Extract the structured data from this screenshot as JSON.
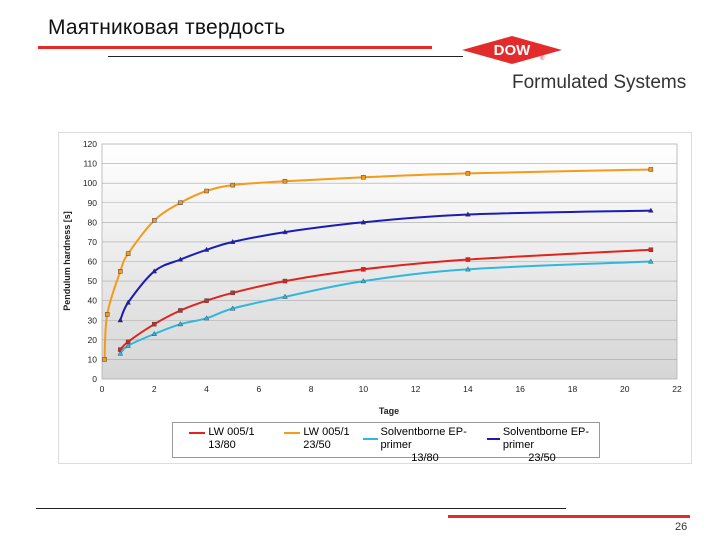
{
  "slide": {
    "title": "Маятниковая твердость",
    "logo_text": "DOW",
    "logo_mark": "®",
    "logo_subtitle": "Formulated Systems",
    "page_number": "26",
    "brand_red": "#e32b2b"
  },
  "chart_data": {
    "type": "line",
    "xlabel": "Tage",
    "ylabel": "Pendulum hardness [s]",
    "xlim": [
      0,
      22
    ],
    "ylim": [
      0,
      120
    ],
    "xticks": [
      0,
      2,
      4,
      6,
      8,
      10,
      12,
      14,
      16,
      18,
      20,
      22
    ],
    "yticks": [
      0,
      10,
      20,
      30,
      40,
      50,
      60,
      70,
      80,
      90,
      100,
      110,
      120
    ],
    "grid": true,
    "legend_position": "bottom",
    "series": [
      {
        "name": "LW 005/1",
        "sub": "13/80",
        "color": "#e0241c",
        "marker": "square",
        "x": [
          0.7,
          1,
          2,
          3,
          4,
          5,
          7,
          10,
          14,
          21
        ],
        "y": [
          15,
          19,
          28,
          35,
          40,
          44,
          50,
          56,
          61,
          66
        ]
      },
      {
        "name": "LW 005/1",
        "sub": "23/50",
        "color": "#f59a1b",
        "marker": "square",
        "x": [
          0.1,
          0.2,
          0.7,
          1,
          2,
          3,
          4,
          5,
          7,
          10,
          14,
          21
        ],
        "y": [
          10,
          33,
          55,
          64,
          81,
          90,
          96,
          99,
          101,
          103,
          105,
          107
        ]
      },
      {
        "name": "Solventborne EP-primer",
        "sub": "13/80",
        "color": "#2fb7e0",
        "marker": "triangle",
        "x": [
          0.7,
          1,
          2,
          3,
          4,
          5,
          7,
          10,
          14,
          21
        ],
        "y": [
          13,
          17,
          23,
          28,
          31,
          36,
          42,
          50,
          56,
          60
        ]
      },
      {
        "name": "Solventborne EP-primer",
        "sub": "23/50",
        "color": "#1c1cb5",
        "marker": "triangle",
        "x": [
          0.7,
          1,
          2,
          3,
          4,
          5,
          7,
          10,
          14,
          21
        ],
        "y": [
          30,
          39,
          55,
          61,
          66,
          70,
          75,
          80,
          84,
          86
        ]
      }
    ]
  }
}
